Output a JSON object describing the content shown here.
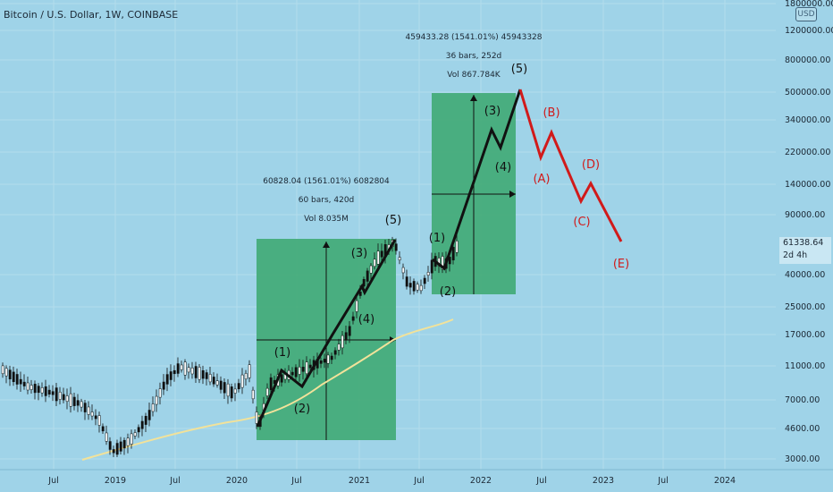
{
  "header": {
    "title": "Bitcoin / U.S. Dollar, 1W, COINBASE"
  },
  "price_axis": {
    "currency_badge": "USD",
    "last_price": "61338.64",
    "countdown": "2d 4h",
    "ticks": [
      "1800000.00",
      "1200000.00",
      "800000.00",
      "500000.00",
      "340000.00",
      "220000.00",
      "140000.00",
      "90000.00",
      "40000.00",
      "25000.00",
      "17000.00",
      "11000.00",
      "7000.00",
      "4600.00",
      "3000.00"
    ]
  },
  "time_axis": {
    "ticks": [
      "Jul",
      "2019",
      "Jul",
      "2020",
      "Jul",
      "2021",
      "Jul",
      "2022",
      "Jul",
      "2023",
      "Jul",
      "2024"
    ]
  },
  "measure_1": {
    "line1": "60828.04 (1561.01%) 6082804",
    "line2": "60 bars, 420d",
    "line3": "Vol 8.035M"
  },
  "measure_2": {
    "line1": "459433.28 (1541.01%) 45943328",
    "line2": "36 bars, 252d",
    "line3": "Vol 867.784K"
  },
  "waves_black": [
    "(1)",
    "(2)",
    "(3)",
    "(4)",
    "(5)",
    "(1)",
    "(2)",
    "(3)",
    "(4)",
    "(5)"
  ],
  "waves_red": [
    "(A)",
    "(B)",
    "(C)",
    "(D)",
    "(E)"
  ],
  "chart_data": {
    "type": "candlestick",
    "title": "Bitcoin / U.S. Dollar, 1W, COINBASE",
    "y_scale": "log",
    "ylim": [
      3000,
      1800000
    ],
    "x_ticks": [
      "Jul",
      "2019",
      "Jul",
      "2020",
      "Jul",
      "2021",
      "Jul",
      "2022",
      "Jul",
      "2023",
      "Jul",
      "2024"
    ],
    "last_price": 61338.64,
    "annotations": [
      {
        "text": "60828.04 (1561.01%) 6082804"
      },
      {
        "text": "60 bars, 420d"
      },
      {
        "text": "Vol 8.035M"
      },
      {
        "text": "459433.28 (1541.01%) 45943328"
      },
      {
        "text": "36 bars, 252d"
      },
      {
        "text": "Vol 867.784K"
      }
    ],
    "colors": {
      "background": "#9fd3e8",
      "measure_box": "#3aa76d",
      "projection_black": "#111111",
      "projection_red": "#d11a1a",
      "moving_average": "#f2e29a",
      "candle_up": "#ffffff",
      "candle_down": "#111111"
    }
  }
}
